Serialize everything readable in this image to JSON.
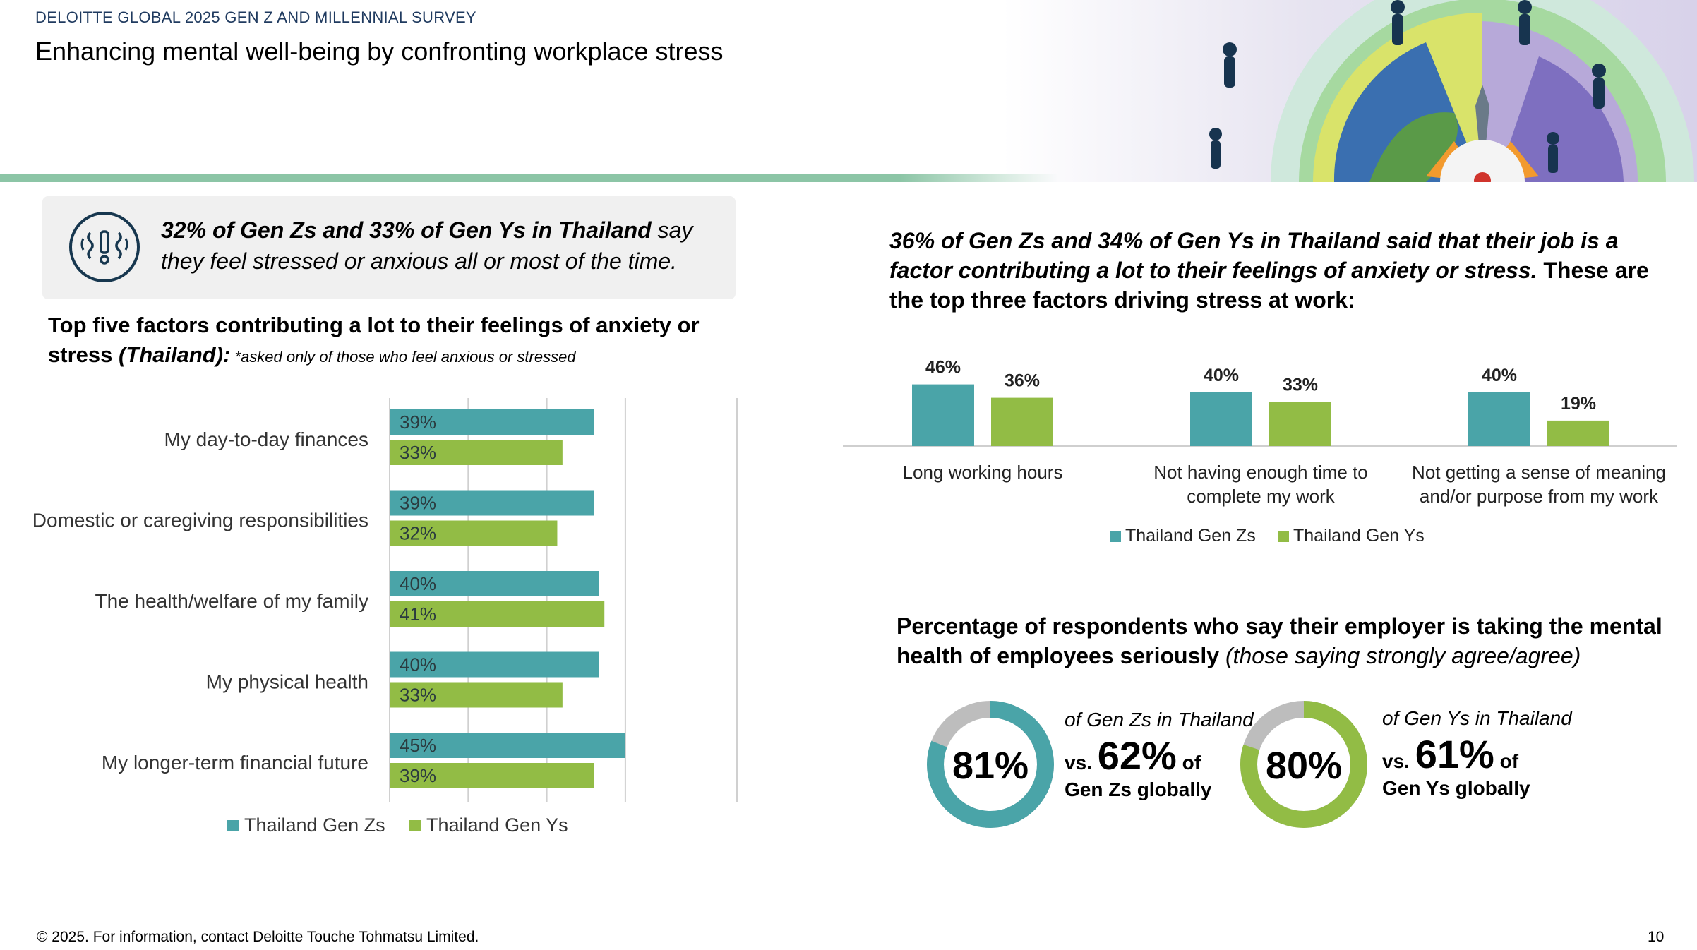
{
  "header": {
    "survey_label": "DELOITTE GLOBAL 2025 GEN Z AND MILLENNIAL SURVEY",
    "title": "Enhancing mental well-being by confronting workplace stress"
  },
  "colors": {
    "gen_z": "#4aa4a8",
    "gen_y": "#92bc45",
    "rule": "#8cc5a6",
    "donut_bg": "#bdbdbd"
  },
  "callout": {
    "icon": "stress-head-icon",
    "bold": "32% of Gen Zs and 33% of Gen Ys in Thailand",
    "rest": " say they feel stressed or anxious all or most of the time."
  },
  "left_heading": {
    "line": "Top five factors contributing a lot to their feelings of anxiety or stress ",
    "italic": "(Thailand):",
    "note": " *asked only of those who feel anxious or stressed"
  },
  "right_heading": {
    "italic": "36% of Gen Zs and 34% of Gen Ys in Thailand said that their job is a factor contributing a lot to their feelings of anxiety or stress.",
    "rest": " These are the top three factors driving stress at work:"
  },
  "employer": {
    "heading": "Percentage of respondents who say their employer is taking the mental health of employees seriously ",
    "heading_italic": "(those saying strongly agree/agree)",
    "gen_z": {
      "value": 81,
      "label": "81%",
      "line1": "of Gen Zs in Thailand",
      "vs": "vs.",
      "global": "62%",
      "of": "of",
      "line3": "Gen Zs globally"
    },
    "gen_y": {
      "value": 80,
      "label": "80%",
      "line1": "of Gen Ys in Thailand",
      "vs": "vs.",
      "global": "61%",
      "of": "of",
      "line3": "Gen Ys globally"
    }
  },
  "chart_data": [
    {
      "type": "bar",
      "orientation": "horizontal",
      "categories": [
        "My day-to-day finances",
        "Domestic or caregiving responsibilities",
        "The health/welfare of my family",
        "My physical health",
        "My longer-term financial future"
      ],
      "series": [
        {
          "name": "Thailand Gen Zs",
          "values": [
            39,
            39,
            40,
            40,
            45
          ],
          "labels": [
            "39%",
            "39%",
            "40%",
            "40%",
            "45%"
          ]
        },
        {
          "name": "Thailand Gen Ys",
          "values": [
            33,
            32,
            41,
            33,
            39
          ],
          "labels": [
            "33%",
            "32%",
            "41%",
            "33%",
            "39%"
          ]
        }
      ],
      "xlim": [
        0,
        60
      ],
      "grid": true,
      "legend": "bottom"
    },
    {
      "type": "bar",
      "orientation": "vertical",
      "categories": [
        "Long working hours",
        "Not having enough time to complete my work",
        "Not getting a sense of meaning and/or purpose from my work"
      ],
      "series": [
        {
          "name": "Thailand Gen Zs",
          "values": [
            46,
            40,
            40
          ],
          "labels": [
            "46%",
            "40%",
            "40%"
          ]
        },
        {
          "name": "Thailand Gen Ys",
          "values": [
            36,
            33,
            19
          ],
          "labels": [
            "36%",
            "33%",
            "19%"
          ]
        }
      ],
      "grid": false,
      "legend": "bottom"
    },
    {
      "type": "pie",
      "variant": "donut",
      "slices": [
        {
          "name": "Thailand Gen Zs",
          "value": 81
        },
        {
          "name": "Thailand Gen Ys",
          "value": 80
        }
      ]
    }
  ],
  "footer": {
    "text": "© 2025. For information, contact Deloitte Touche Tohmatsu Limited.",
    "page": "10"
  }
}
